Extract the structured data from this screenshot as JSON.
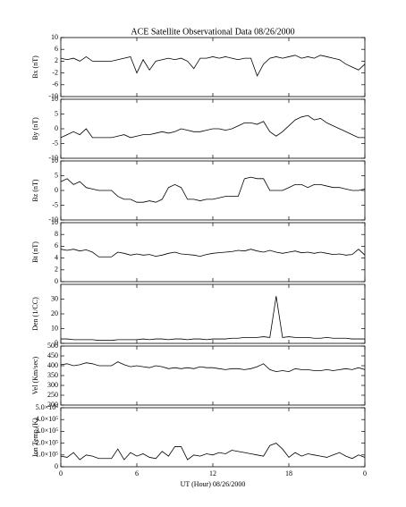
{
  "chart_data": [
    {
      "type": "line",
      "title": "ACE Satellite Observational Data   08/26/2000",
      "ylabel": "Bx (nT)",
      "color": "#000000",
      "x": [
        0,
        0.5,
        1,
        1.5,
        2,
        2.5,
        3,
        3.5,
        4,
        4.5,
        5,
        5.5,
        6,
        6.5,
        7,
        7.5,
        8,
        8.5,
        9,
        9.5,
        10,
        10.5,
        11,
        11.5,
        12,
        12.5,
        13,
        13.5,
        14,
        14.5,
        15,
        15.5,
        16,
        16.5,
        17,
        17.5,
        18,
        18.5,
        19,
        19.5,
        20,
        20.5,
        21,
        21.5,
        22,
        22.5,
        23,
        23.5,
        24
      ],
      "values": [
        3,
        2.5,
        3,
        2,
        3.5,
        2,
        2,
        2,
        2,
        2.5,
        3,
        3.5,
        -2,
        2.5,
        -1,
        2,
        2.5,
        3,
        2.5,
        3,
        2,
        -0.5,
        3,
        3,
        3.5,
        3,
        3.5,
        3,
        2.5,
        3,
        3,
        -3,
        1,
        3,
        3.5,
        3,
        3.5,
        4,
        3,
        3.5,
        3,
        4,
        3.5,
        3,
        2.5,
        1,
        0,
        -1,
        1
      ],
      "xlim": [
        0,
        24
      ],
      "xticks": [
        0,
        6,
        12,
        18,
        24
      ],
      "ylim": [
        -10,
        10
      ],
      "yticks": [
        10,
        6,
        2,
        -2,
        -6,
        -10
      ]
    },
    {
      "type": "line",
      "ylabel": "By (nT)",
      "color": "#000000",
      "x": [
        0,
        0.5,
        1,
        1.5,
        2,
        2.5,
        3,
        3.5,
        4,
        4.5,
        5,
        5.5,
        6,
        6.5,
        7,
        7.5,
        8,
        8.5,
        9,
        9.5,
        10,
        10.5,
        11,
        11.5,
        12,
        12.5,
        13,
        13.5,
        14,
        14.5,
        15,
        15.5,
        16,
        16.5,
        17,
        17.5,
        18,
        18.5,
        19,
        19.5,
        20,
        20.5,
        21,
        21.5,
        22,
        22.5,
        23,
        23.5,
        24
      ],
      "values": [
        -3,
        -2,
        -1,
        -2,
        0,
        -3,
        -3,
        -3,
        -3,
        -2.5,
        -2,
        -3,
        -2.5,
        -2,
        -2,
        -1.5,
        -1,
        -1.5,
        -1,
        0,
        -0.5,
        -1,
        -1,
        -0.5,
        0,
        0,
        -0.5,
        0,
        1,
        2,
        2,
        1.5,
        2.5,
        -1,
        -2.5,
        -1,
        1,
        3,
        4,
        4.5,
        3,
        3.5,
        2,
        1,
        0,
        -1,
        -2,
        -3,
        -3
      ],
      "xlim": [
        0,
        24
      ],
      "xticks": [
        0,
        6,
        12,
        18,
        24
      ],
      "ylim": [
        -10,
        10
      ],
      "yticks": [
        10,
        5,
        0,
        -5,
        -10
      ]
    },
    {
      "type": "line",
      "ylabel": "Bz (nT)",
      "color": "#000000",
      "x": [
        0,
        0.5,
        1,
        1.5,
        2,
        2.5,
        3,
        3.5,
        4,
        4.5,
        5,
        5.5,
        6,
        6.5,
        7,
        7.5,
        8,
        8.5,
        9,
        9.5,
        10,
        10.5,
        11,
        11.5,
        12,
        12.5,
        13,
        13.5,
        14,
        14.5,
        15,
        15.5,
        16,
        16.5,
        17,
        17.5,
        18,
        18.5,
        19,
        19.5,
        20,
        20.5,
        21,
        21.5,
        22,
        22.5,
        23,
        23.5,
        24
      ],
      "values": [
        3,
        4,
        2,
        3,
        1,
        0.5,
        0,
        0,
        0,
        -2,
        -3,
        -3,
        -4,
        -4,
        -3.5,
        -4,
        -3,
        1,
        2,
        1,
        -3,
        -3,
        -3.5,
        -3,
        -3,
        -2.5,
        -2,
        -2,
        -2,
        4,
        4.5,
        4,
        4,
        0,
        0,
        0,
        1,
        2,
        2,
        1,
        2,
        2,
        1.5,
        1,
        1,
        0.5,
        0,
        0,
        0.5
      ],
      "xlim": [
        0,
        24
      ],
      "xticks": [
        0,
        6,
        12,
        18,
        24
      ],
      "ylim": [
        -10,
        10
      ],
      "yticks": [
        10,
        5,
        0,
        -5,
        -10
      ]
    },
    {
      "type": "line",
      "ylabel": "Bt (nT)",
      "color": "#000000",
      "x": [
        0,
        0.5,
        1,
        1.5,
        2,
        2.5,
        3,
        3.5,
        4,
        4.5,
        5,
        5.5,
        6,
        6.5,
        7,
        7.5,
        8,
        8.5,
        9,
        9.5,
        10,
        10.5,
        11,
        11.5,
        12,
        12.5,
        13,
        13.5,
        14,
        14.5,
        15,
        15.5,
        16,
        16.5,
        17,
        17.5,
        18,
        18.5,
        19,
        19.5,
        20,
        20.5,
        21,
        21.5,
        22,
        22.5,
        23,
        23.5,
        24
      ],
      "values": [
        5.5,
        5.3,
        5.5,
        5.2,
        5.4,
        5,
        4.2,
        4.2,
        4.2,
        5,
        4.8,
        4.5,
        4.7,
        4.5,
        4.6,
        4.3,
        4.5,
        4.8,
        5,
        4.7,
        4.6,
        4.5,
        4.3,
        4.6,
        4.8,
        4.9,
        5,
        5.1,
        5.3,
        5.2,
        5.5,
        5.2,
        5,
        5.3,
        5,
        4.8,
        5,
        5.2,
        4.9,
        5,
        4.8,
        5,
        4.8,
        4.6,
        4.7,
        4.5,
        4.6,
        5.5,
        4.5
      ],
      "xlim": [
        0,
        24
      ],
      "xticks": [
        0,
        6,
        12,
        18,
        24
      ],
      "ylim": [
        0,
        10
      ],
      "yticks": [
        10,
        8,
        6,
        4,
        2,
        0
      ]
    },
    {
      "type": "line",
      "ylabel": "Den (1/CC)",
      "color": "#000000",
      "x": [
        0,
        0.5,
        1,
        1.5,
        2,
        2.5,
        3,
        3.5,
        4,
        4.5,
        5,
        5.5,
        6,
        6.5,
        7,
        7.5,
        8,
        8.5,
        9,
        9.5,
        10,
        10.5,
        11,
        11.5,
        12,
        12.5,
        13,
        13.5,
        14,
        14.5,
        15,
        15.5,
        16,
        16.5,
        17,
        17.5,
        18,
        18.5,
        19,
        19.5,
        20,
        20.5,
        21,
        21.5,
        22,
        22.5,
        23,
        23.5,
        24
      ],
      "values": [
        3,
        3,
        2.5,
        2.5,
        2.5,
        2.5,
        2,
        2,
        2,
        2.5,
        2.5,
        2.5,
        2.5,
        3,
        2.5,
        3,
        3,
        2.5,
        3,
        3,
        2.5,
        3,
        3,
        2.5,
        3,
        3,
        3,
        3.5,
        3.5,
        4,
        4,
        4,
        4.5,
        4,
        32,
        4,
        4.5,
        4,
        4,
        4,
        3.5,
        3.5,
        4,
        3.5,
        3.5,
        3.5,
        3,
        3,
        3
      ],
      "xlim": [
        0,
        24
      ],
      "xticks": [
        0,
        6,
        12,
        18,
        24
      ],
      "ylim": [
        0,
        40
      ],
      "yticks": [
        30,
        20,
        10,
        0
      ]
    },
    {
      "type": "line",
      "ylabel": "Vel (Km/sec)",
      "color": "#000000",
      "x": [
        0,
        0.5,
        1,
        1.5,
        2,
        2.5,
        3,
        3.5,
        4,
        4.5,
        5,
        5.5,
        6,
        6.5,
        7,
        7.5,
        8,
        8.5,
        9,
        9.5,
        10,
        10.5,
        11,
        11.5,
        12,
        12.5,
        13,
        13.5,
        14,
        14.5,
        15,
        15.5,
        16,
        16.5,
        17,
        17.5,
        18,
        18.5,
        19,
        19.5,
        20,
        20.5,
        21,
        21.5,
        22,
        22.5,
        23,
        23.5,
        24
      ],
      "values": [
        405,
        410,
        400,
        405,
        415,
        410,
        400,
        400,
        400,
        420,
        405,
        395,
        400,
        395,
        390,
        400,
        395,
        385,
        390,
        385,
        390,
        385,
        395,
        390,
        390,
        385,
        380,
        385,
        385,
        380,
        385,
        395,
        410,
        380,
        370,
        375,
        370,
        385,
        380,
        380,
        375,
        375,
        380,
        375,
        380,
        385,
        380,
        390,
        380
      ],
      "xlim": [
        0,
        24
      ],
      "xticks": [
        0,
        6,
        12,
        18,
        24
      ],
      "ylim": [
        200,
        500
      ],
      "yticks": [
        500,
        450,
        400,
        350,
        300,
        250,
        200
      ]
    },
    {
      "type": "line",
      "ylabel": "Ion Temp (K)",
      "xlabel": "UT (Hour)   08/26/2000",
      "color": "#000000",
      "x": [
        0,
        0.5,
        1,
        1.5,
        2,
        2.5,
        3,
        3.5,
        4,
        4.5,
        5,
        5.5,
        6,
        6.5,
        7,
        7.5,
        8,
        8.5,
        9,
        9.5,
        10,
        10.5,
        11,
        11.5,
        12,
        12.5,
        13,
        13.5,
        14,
        14.5,
        15,
        15.5,
        16,
        16.5,
        17,
        17.5,
        18,
        18.5,
        19,
        19.5,
        20,
        20.5,
        21,
        21.5,
        22,
        22.5,
        23,
        23.5,
        24
      ],
      "values": [
        90000,
        80000,
        120000,
        60000,
        100000,
        90000,
        70000,
        70000,
        70000,
        150000,
        60000,
        120000,
        90000,
        110000,
        80000,
        70000,
        130000,
        90000,
        170000,
        170000,
        60000,
        100000,
        90000,
        110000,
        100000,
        120000,
        110000,
        140000,
        130000,
        120000,
        110000,
        100000,
        90000,
        180000,
        200000,
        150000,
        80000,
        120000,
        90000,
        110000,
        100000,
        90000,
        80000,
        100000,
        120000,
        90000,
        70000,
        100000,
        80000
      ],
      "xlim": [
        0,
        24
      ],
      "xticks": [
        0,
        6,
        12,
        18,
        {
          "value": 24,
          "label": "0"
        }
      ],
      "ylim": [
        0,
        500000
      ],
      "yticks": [
        {
          "value": 500000,
          "label": "5.0×10⁵"
        },
        {
          "value": 400000,
          "label": "4.0×10⁵"
        },
        {
          "value": 300000,
          "label": "3.0×10⁵"
        },
        {
          "value": 200000,
          "label": "2.0×10⁵"
        },
        {
          "value": 100000,
          "label": "1.0×10⁵"
        },
        0
      ]
    }
  ]
}
